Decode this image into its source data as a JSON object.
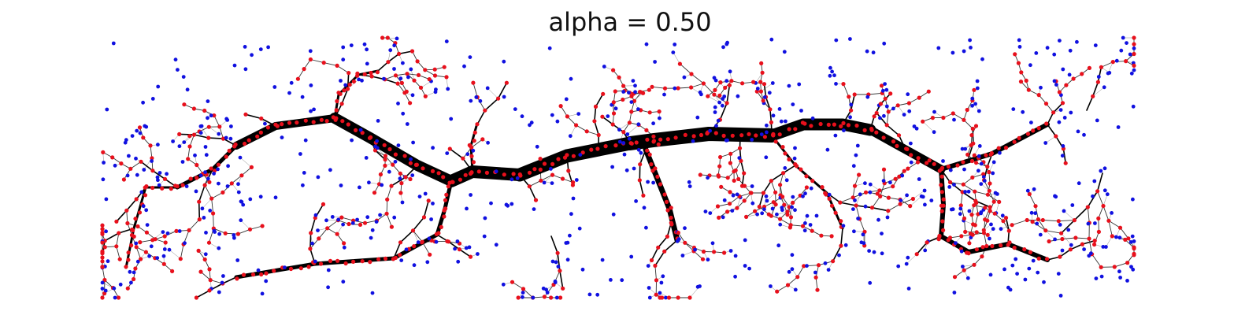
{
  "title": "alpha = 0.50",
  "colors": {
    "background": "#ffffff",
    "edge": "#000000",
    "thin_edge": "#8a8a8a",
    "network_node": "#e8101c",
    "terminal_node": "#1010e0",
    "title_text": "#111111"
  },
  "diagram": {
    "type": "network-graph",
    "description_shown": false,
    "trunk_thickness_varies_with_flow": true
  }
}
